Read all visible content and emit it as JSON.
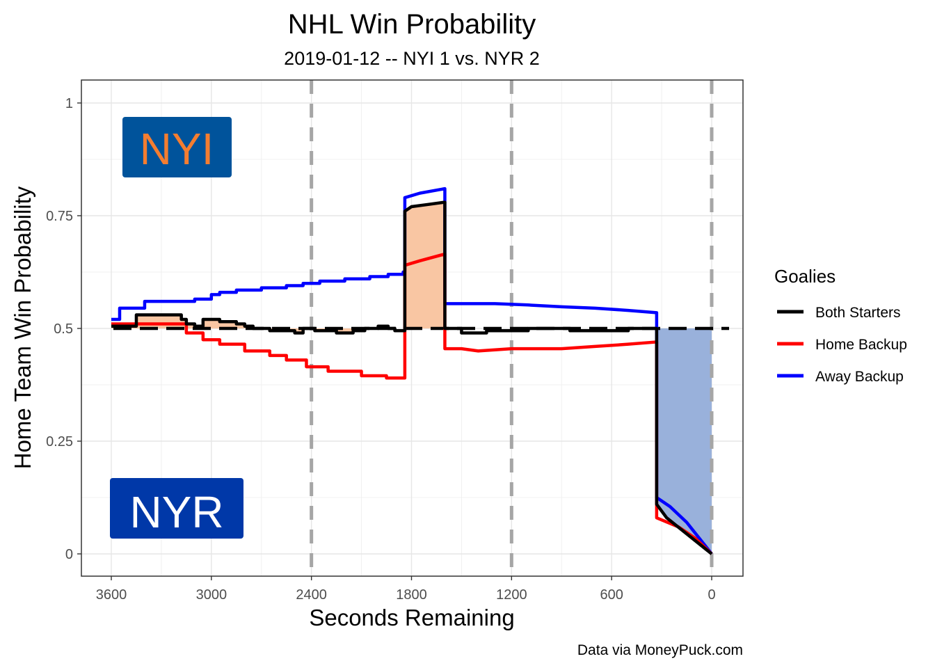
{
  "chart_data": {
    "type": "line",
    "title": "NHL Win Probability",
    "subtitle": "2019-01-12 -- NYI 1 vs. NYR 2",
    "xlabel": "Seconds Remaining",
    "ylabel": "Home Team Win Probability",
    "xlim": [
      3600,
      0
    ],
    "ylim": [
      0,
      1
    ],
    "x_ticks": [
      "3600",
      "3000",
      "2400",
      "1800",
      "1200",
      "600",
      "0"
    ],
    "y_ticks": [
      "0",
      "0.25",
      "0.5",
      "0.75",
      "1"
    ],
    "period_lines": [
      2400,
      1200,
      0
    ],
    "reference_line": 0.5,
    "grid": true,
    "caption": "Data via MoneyPuck.com",
    "legend": {
      "title": "Goalies",
      "placement": "right",
      "entries": [
        {
          "label": "Both Starters",
          "color": "#000000"
        },
        {
          "label": "Home Backup",
          "color": "#ff0000"
        },
        {
          "label": "Away Backup",
          "color": "#0000ff"
        }
      ]
    },
    "team_labels": {
      "top": {
        "text": "NYI",
        "bg": "#00539b",
        "fg": "#f47d30"
      },
      "bottom": {
        "text": "NYR",
        "bg": "#0038a8",
        "fg": "#ffffff"
      }
    },
    "shade_colors": {
      "home": "#f9c6a3",
      "away": "#99b1db"
    },
    "series": [
      {
        "name": "Both Starters",
        "color": "#000000",
        "x": [
          3600,
          3450,
          3450,
          3180,
          3180,
          3150,
          3150,
          3100,
          3100,
          3050,
          3050,
          2950,
          2950,
          2850,
          2850,
          2800,
          2800,
          2750,
          2750,
          2650,
          2650,
          2500,
          2500,
          2450,
          2450,
          2380,
          2380,
          2250,
          2250,
          2150,
          2150,
          2080,
          2080,
          2000,
          2000,
          1940,
          1940,
          1900,
          1900,
          1840,
          1840,
          1800,
          1700,
          1600,
          1600,
          1500,
          1500,
          1350,
          1350,
          1100,
          1100,
          850,
          850,
          500,
          500,
          350,
          330,
          330,
          270,
          0
        ],
        "values": [
          0.505,
          0.505,
          0.53,
          0.53,
          0.52,
          0.52,
          0.51,
          0.51,
          0.505,
          0.505,
          0.52,
          0.52,
          0.515,
          0.515,
          0.51,
          0.51,
          0.505,
          0.505,
          0.5,
          0.5,
          0.495,
          0.495,
          0.49,
          0.49,
          0.5,
          0.5,
          0.495,
          0.495,
          0.49,
          0.49,
          0.495,
          0.495,
          0.5,
          0.5,
          0.505,
          0.505,
          0.5,
          0.5,
          0.495,
          0.495,
          0.76,
          0.77,
          0.775,
          0.78,
          0.5,
          0.5,
          0.49,
          0.49,
          0.495,
          0.495,
          0.5,
          0.5,
          0.495,
          0.495,
          0.5,
          0.5,
          0.5,
          0.11,
          0.08,
          0.0
        ]
      },
      {
        "name": "Home Backup",
        "color": "#ff0000",
        "x": [
          3600,
          3150,
          3150,
          3050,
          3050,
          2950,
          2950,
          2800,
          2800,
          2650,
          2650,
          2550,
          2550,
          2430,
          2430,
          2300,
          2300,
          2100,
          2100,
          1950,
          1950,
          1840,
          1840,
          1750,
          1600,
          1600,
          1550,
          1500,
          1400,
          1200,
          900,
          700,
          500,
          330,
          330,
          200,
          100,
          0
        ],
        "values": [
          0.51,
          0.51,
          0.49,
          0.49,
          0.475,
          0.475,
          0.465,
          0.465,
          0.45,
          0.45,
          0.44,
          0.44,
          0.43,
          0.43,
          0.415,
          0.415,
          0.405,
          0.405,
          0.395,
          0.395,
          0.39,
          0.39,
          0.64,
          0.65,
          0.665,
          0.455,
          0.455,
          0.455,
          0.45,
          0.455,
          0.455,
          0.46,
          0.465,
          0.47,
          0.08,
          0.06,
          0.035,
          0.0
        ]
      },
      {
        "name": "Away Backup",
        "color": "#0000ff",
        "x": [
          3600,
          3550,
          3550,
          3400,
          3400,
          3100,
          3100,
          3000,
          3000,
          2950,
          2950,
          2850,
          2850,
          2700,
          2700,
          2550,
          2550,
          2450,
          2450,
          2350,
          2350,
          2200,
          2200,
          2050,
          2050,
          1940,
          1940,
          1850,
          1850,
          1840,
          1840,
          1750,
          1600,
          1600,
          1450,
          1300,
          1100,
          900,
          700,
          500,
          330,
          330,
          250,
          150,
          0
        ],
        "values": [
          0.52,
          0.52,
          0.545,
          0.545,
          0.56,
          0.56,
          0.565,
          0.565,
          0.575,
          0.575,
          0.58,
          0.58,
          0.585,
          0.585,
          0.59,
          0.59,
          0.595,
          0.595,
          0.6,
          0.6,
          0.605,
          0.605,
          0.61,
          0.61,
          0.615,
          0.615,
          0.62,
          0.62,
          0.625,
          0.625,
          0.79,
          0.8,
          0.81,
          0.555,
          0.555,
          0.555,
          0.552,
          0.548,
          0.545,
          0.54,
          0.535,
          0.125,
          0.105,
          0.07,
          0.0
        ]
      }
    ]
  }
}
